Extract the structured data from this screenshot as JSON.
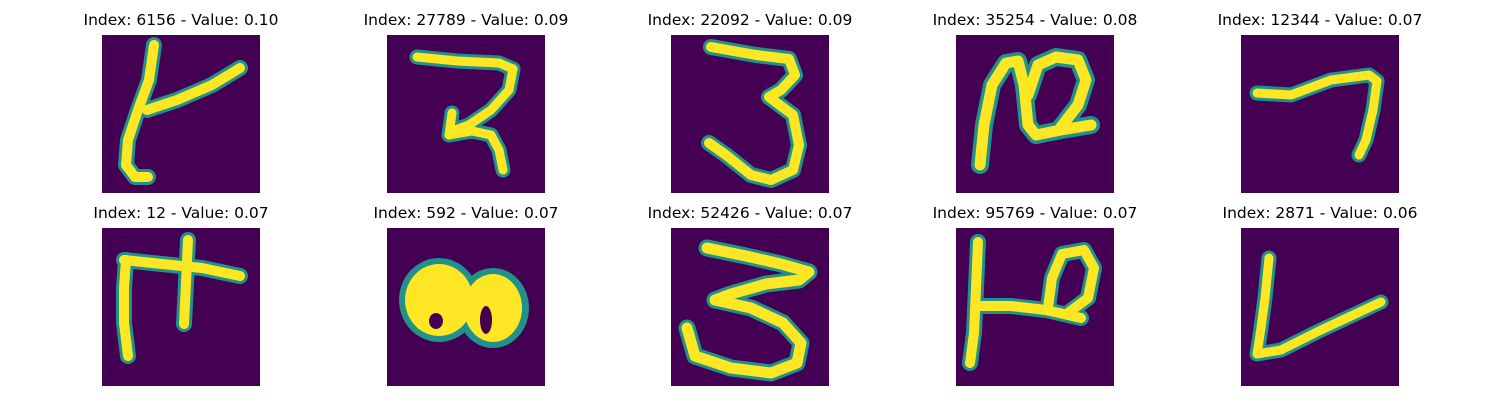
{
  "colors": {
    "background": "#440154",
    "stroke_outer": "#21918c",
    "stroke_inner": "#fde725",
    "stroke_mid": "#5ec962"
  },
  "grid": {
    "rows": [
      [
        {
          "title": "Index: 6156 - Value: 0.10",
          "glyph": "glyph-6156"
        },
        {
          "title": "Index: 27789 - Value: 0.09",
          "glyph": "glyph-27789"
        },
        {
          "title": "Index: 22092 - Value: 0.09",
          "glyph": "glyph-22092"
        },
        {
          "title": "Index: 35254 - Value: 0.08",
          "glyph": "glyph-35254"
        },
        {
          "title": "Index: 12344 - Value: 0.07",
          "glyph": "glyph-12344"
        }
      ],
      [
        {
          "title": "Index: 12 - Value: 0.07",
          "glyph": "glyph-12"
        },
        {
          "title": "Index: 592 - Value: 0.07",
          "glyph": "glyph-592"
        },
        {
          "title": "Index: 52426 - Value: 0.07",
          "glyph": "glyph-52426"
        },
        {
          "title": "Index: 95769 - Value: 0.07",
          "glyph": "glyph-95769"
        },
        {
          "title": "Index: 2871 - Value: 0.06",
          "glyph": "glyph-2871"
        }
      ]
    ]
  }
}
